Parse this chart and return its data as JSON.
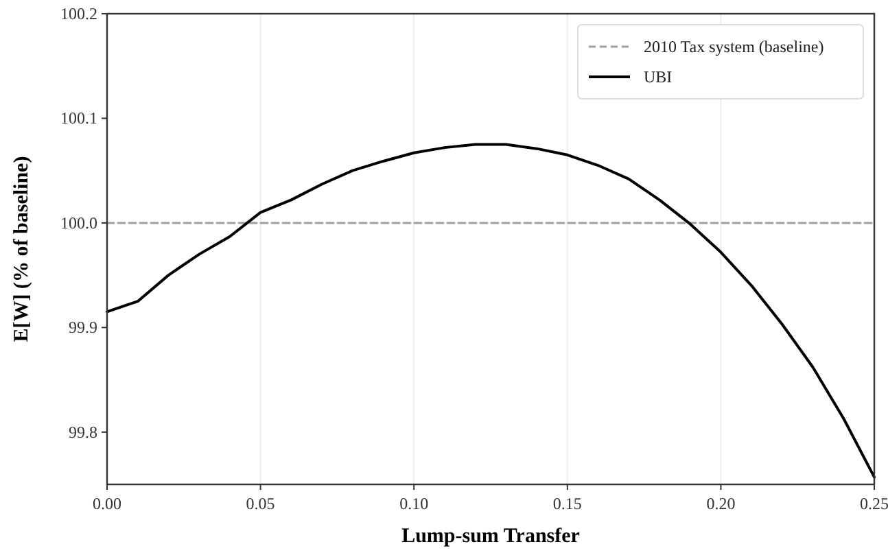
{
  "chart_data": {
    "type": "line",
    "xlabel": "Lump-sum Transfer",
    "ylabel": "E[W] (% of baseline)",
    "xlim": [
      0,
      0.25
    ],
    "ylim": [
      99.75,
      100.2
    ],
    "xticks": [
      {
        "value": 0,
        "label": "0.00"
      },
      {
        "value": 0.05,
        "label": "0.05"
      },
      {
        "value": 0.1,
        "label": "0.10"
      },
      {
        "value": 0.15,
        "label": "0.15"
      },
      {
        "value": 0.2,
        "label": "0.20"
      },
      {
        "value": 0.25,
        "label": "0.25"
      }
    ],
    "yticks": [
      99.8,
      99.9,
      {
        "value": 100,
        "label": "100.0"
      },
      100.1,
      100.2
    ],
    "grid": "x",
    "legend": "top right",
    "series": [
      {
        "name": "2010 Tax system (baseline)",
        "color": "#a0a0a0",
        "line_style": "dashed",
        "x": [
          0,
          0.25
        ],
        "values": [
          100,
          100
        ]
      },
      {
        "name": "UBI",
        "color": "#000000",
        "line_style": "solid",
        "x": [
          0,
          0.01,
          0.02,
          0.03,
          0.04,
          0.05,
          0.06,
          0.07,
          0.08,
          0.09,
          0.1,
          0.11,
          0.12,
          0.13,
          0.14,
          0.15,
          0.16,
          0.17,
          0.18,
          0.19,
          0.2,
          0.21,
          0.22,
          0.23,
          0.24,
          0.25
        ],
        "values": [
          99.915,
          99.925,
          99.95,
          99.97,
          99.987,
          100.01,
          100.022,
          100.037,
          100.05,
          100.059,
          100.067,
          100.072,
          100.075,
          100.075,
          100.071,
          100.065,
          100.055,
          100.042,
          100.022,
          99.999,
          99.972,
          99.94,
          99.903,
          99.862,
          99.813,
          99.757
        ]
      }
    ]
  }
}
